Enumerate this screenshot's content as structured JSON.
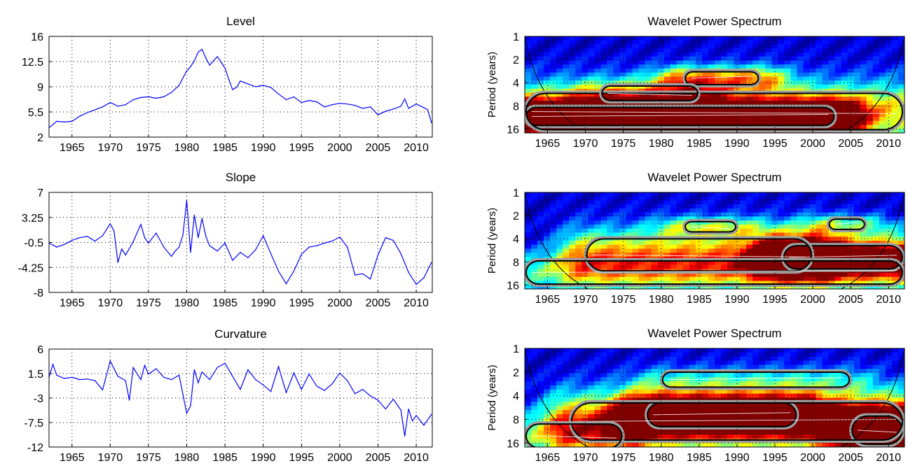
{
  "figure": {
    "x_tick_labels": [
      "1965",
      "1970",
      "1975",
      "1980",
      "1985",
      "1990",
      "1995",
      "2000",
      "2005",
      "2010"
    ]
  },
  "chart_data": [
    {
      "type": "line",
      "title": "Level",
      "xlabel": "",
      "ylabel": "",
      "xlim": [
        1962.0,
        2012.1
      ],
      "ylim": [
        2,
        16
      ],
      "yticks": [
        "16",
        "12.5",
        "9",
        "5.5",
        "2"
      ],
      "ytick_values": [
        16,
        12.5,
        9,
        5.5,
        2
      ],
      "xticks": [
        1965,
        1970,
        1975,
        1980,
        1985,
        1990,
        1995,
        2000,
        2005,
        2010
      ],
      "grid": true,
      "color": "#0000ff",
      "series": [
        {
          "x": [
            1962,
            1963,
            1964,
            1965,
            1966,
            1967,
            1968,
            1969,
            1970,
            1971,
            1972,
            1973,
            1974,
            1975,
            1976,
            1977,
            1978,
            1979,
            1980,
            1980.5,
            1981,
            1981.5,
            1982,
            1982.5,
            1983,
            1983.5,
            1984,
            1984.5,
            1985,
            1985.5,
            1986,
            1986.5,
            1987,
            1988,
            1989,
            1990,
            1991,
            1992,
            1993,
            1994,
            1995,
            1996,
            1997,
            1998,
            1999,
            2000,
            2001,
            2002,
            2003,
            2004,
            2005,
            2006,
            2007,
            2008,
            2008.5,
            2009,
            2010,
            2011,
            2011.5,
            2012
          ],
          "y": [
            3.3,
            4.2,
            4.1,
            4.2,
            4.9,
            5.4,
            5.8,
            6.2,
            6.8,
            6.3,
            6.5,
            7.2,
            7.5,
            7.6,
            7.4,
            7.6,
            8.2,
            9.2,
            11.2,
            11.8,
            12.6,
            13.8,
            14.2,
            13.0,
            12.0,
            12.6,
            13.2,
            12.4,
            11.6,
            10.0,
            8.6,
            8.9,
            9.8,
            9.4,
            9.0,
            9.2,
            8.9,
            8.0,
            7.2,
            7.6,
            6.8,
            7.1,
            6.9,
            6.2,
            6.5,
            6.7,
            6.6,
            6.4,
            6.0,
            6.2,
            5.1,
            5.6,
            5.9,
            6.3,
            7.3,
            6.0,
            6.6,
            6.1,
            5.8,
            4.0
          ]
        }
      ]
    },
    {
      "type": "line",
      "title": "Slope",
      "xlabel": "",
      "ylabel": "",
      "xlim": [
        1962.0,
        2012.1
      ],
      "ylim": [
        -8,
        7
      ],
      "yticks": [
        "7",
        "3.25",
        "-0.5",
        "-4.25",
        "-8"
      ],
      "ytick_values": [
        7,
        3.25,
        -0.5,
        -4.25,
        -8
      ],
      "xticks": [
        1965,
        1970,
        1975,
        1980,
        1985,
        1990,
        1995,
        2000,
        2005,
        2010
      ],
      "grid": true,
      "color": "#0000ff",
      "series": [
        {
          "x": [
            1962,
            1963,
            1964,
            1965,
            1966,
            1967,
            1968,
            1969,
            1970,
            1970.5,
            1971,
            1971.5,
            1972,
            1973,
            1974,
            1974.5,
            1975,
            1976,
            1977,
            1978,
            1978.5,
            1979,
            1979.5,
            1980,
            1980.5,
            1981,
            1981.5,
            1982,
            1982.5,
            1983,
            1984,
            1985,
            1986,
            1987,
            1988,
            1989,
            1990,
            1991,
            1992,
            1993,
            1994,
            1995,
            1996,
            1997,
            1998,
            1999,
            2000,
            2001,
            2002,
            2003,
            2004,
            2005,
            2006,
            2007,
            2008,
            2009,
            2010,
            2011,
            2012
          ],
          "y": [
            -0.6,
            -1.2,
            -0.8,
            -0.2,
            0.2,
            0.4,
            -0.3,
            0.5,
            2.3,
            1.2,
            -3.5,
            -1.5,
            -2.4,
            -0.4,
            2.2,
            0.2,
            -0.6,
            0.9,
            -1.2,
            -2.6,
            -1.8,
            -1.2,
            0.6,
            5.8,
            -2.0,
            3.6,
            0.2,
            3.1,
            0.4,
            -1.0,
            -1.8,
            -0.6,
            -3.2,
            -2.0,
            -2.8,
            -1.6,
            0.5,
            -2.2,
            -4.8,
            -6.7,
            -4.8,
            -2.3,
            -1.2,
            -1.0,
            -0.6,
            -0.3,
            0.3,
            -1.2,
            -5.4,
            -5.2,
            -6.0,
            -2.4,
            0.2,
            -0.2,
            -2.2,
            -5.0,
            -6.8,
            -5.8,
            -3.5
          ]
        }
      ]
    },
    {
      "type": "line",
      "title": "Curvature",
      "xlabel": "",
      "ylabel": "",
      "xlim": [
        1962.0,
        2012.1
      ],
      "ylim": [
        -12,
        6
      ],
      "yticks": [
        "6",
        "1.5",
        "-3",
        "-7.5",
        "-12"
      ],
      "ytick_values": [
        6,
        1.5,
        -3,
        -7.5,
        -12
      ],
      "xticks": [
        1965,
        1970,
        1975,
        1980,
        1985,
        1990,
        1995,
        2000,
        2005,
        2010
      ],
      "grid": true,
      "color": "#0000ff",
      "series": [
        {
          "x": [
            1962,
            1962.5,
            1963,
            1964,
            1965,
            1966,
            1967,
            1968,
            1969,
            1970,
            1971,
            1972,
            1972.5,
            1973,
            1974,
            1974.5,
            1975,
            1976,
            1977,
            1978,
            1979,
            1980,
            1980.5,
            1981,
            1981.5,
            1982,
            1983,
            1984,
            1985,
            1986,
            1987,
            1988,
            1989,
            1990,
            1991,
            1992,
            1993,
            1994,
            1995,
            1996,
            1997,
            1998,
            1999,
            2000,
            2001,
            2002,
            2003,
            2004,
            2005,
            2006,
            2007,
            2008,
            2008.5,
            2009,
            2009.5,
            2010,
            2011,
            2012
          ],
          "y": [
            0.8,
            3.2,
            1.2,
            0.6,
            0.8,
            0.4,
            0.5,
            0.2,
            -1.5,
            3.8,
            1.0,
            0.2,
            -3.4,
            2.6,
            0.4,
            3.0,
            1.4,
            2.4,
            0.8,
            0.4,
            1.2,
            -5.8,
            -4.4,
            2.2,
            -0.2,
            1.8,
            0.4,
            2.6,
            3.4,
            1.0,
            -1.4,
            2.2,
            0.4,
            -0.6,
            -1.8,
            2.8,
            -2.0,
            1.6,
            -1.4,
            1.4,
            -0.8,
            -1.6,
            -0.4,
            1.6,
            0.2,
            -2.2,
            -1.4,
            -2.6,
            -3.4,
            -5.0,
            -3.2,
            -5.2,
            -10.0,
            -5.0,
            -7.2,
            -6.2,
            -8.0,
            -6.0
          ]
        }
      ]
    },
    {
      "type": "heatmap",
      "title": "Wavelet Power Spectrum",
      "xlabel": "",
      "ylabel": "Period (years)",
      "xlim": [
        1962.0,
        2012.1
      ],
      "yticks": [
        "1",
        "2",
        "4",
        "8",
        "16"
      ],
      "ytick_values": [
        1,
        2,
        4,
        8,
        16
      ],
      "y_scale": "log2",
      "xticks": [
        1965,
        1970,
        1975,
        1980,
        1985,
        1990,
        1995,
        2000,
        2005,
        2010
      ],
      "colormap": "jet",
      "grid": true,
      "power_bands": [
        {
          "year_start": 1962,
          "year_end": 2003,
          "period": 11.0,
          "intensity": 1.0,
          "period_spread": 0.24
        },
        {
          "year_start": 1962,
          "year_end": 2012,
          "period": 9.5,
          "intensity": 0.55,
          "period_spread": 0.45
        },
        {
          "year_start": 1983,
          "year_end": 1993,
          "period": 3.5,
          "intensity": 0.5,
          "period_spread": 0.18
        },
        {
          "year_start": 1972,
          "year_end": 1985,
          "period": 5.5,
          "intensity": 0.25,
          "period_spread": 0.2
        }
      ]
    },
    {
      "type": "heatmap",
      "title": "Wavelet Power Spectrum",
      "xlabel": "",
      "ylabel": "Period (years)",
      "xlim": [
        1962.0,
        2012.1
      ],
      "yticks": [
        "1",
        "2",
        "4",
        "8",
        "16"
      ],
      "ytick_values": [
        1,
        2,
        4,
        8,
        16
      ],
      "y_scale": "log2",
      "xticks": [
        1965,
        1970,
        1975,
        1980,
        1985,
        1990,
        1995,
        2000,
        2005,
        2010
      ],
      "colormap": "jet",
      "grid": true,
      "power_bands": [
        {
          "year_start": 1996,
          "year_end": 2012,
          "period": 7.0,
          "intensity": 1.0,
          "period_spread": 0.3
        },
        {
          "year_start": 1970,
          "year_end": 2000,
          "period": 6.5,
          "intensity": 0.55,
          "period_spread": 0.4
        },
        {
          "year_start": 1962,
          "year_end": 2012,
          "period": 11.0,
          "intensity": 0.35,
          "period_spread": 0.3
        },
        {
          "year_start": 1983,
          "year_end": 1990,
          "period": 2.8,
          "intensity": 0.3,
          "period_spread": 0.15
        },
        {
          "year_start": 2002,
          "year_end": 2007,
          "period": 2.6,
          "intensity": 0.3,
          "period_spread": 0.15
        }
      ]
    },
    {
      "type": "heatmap",
      "title": "Wavelet Power Spectrum",
      "xlabel": "",
      "ylabel": "Period (years)",
      "xlim": [
        1962.0,
        2012.1
      ],
      "yticks": [
        "1",
        "2",
        "4",
        "8",
        "16"
      ],
      "ytick_values": [
        1,
        2,
        4,
        8,
        16
      ],
      "y_scale": "log2",
      "xticks": [
        1965,
        1970,
        1975,
        1980,
        1985,
        1990,
        1995,
        2000,
        2005,
        2010
      ],
      "colormap": "jet",
      "grid": true,
      "power_bands": [
        {
          "year_start": 1978,
          "year_end": 1998,
          "period": 7.0,
          "intensity": 1.0,
          "period_spread": 0.3
        },
        {
          "year_start": 2005,
          "year_end": 2012,
          "period": 11.0,
          "intensity": 0.95,
          "period_spread": 0.35
        },
        {
          "year_start": 1968,
          "year_end": 2012,
          "period": 8.5,
          "intensity": 0.6,
          "period_spread": 0.45
        },
        {
          "year_start": 1962,
          "year_end": 1975,
          "period": 13.0,
          "intensity": 0.35,
          "period_spread": 0.3
        },
        {
          "year_start": 1980,
          "year_end": 2005,
          "period": 2.5,
          "intensity": 0.2,
          "period_spread": 0.2
        }
      ]
    }
  ]
}
